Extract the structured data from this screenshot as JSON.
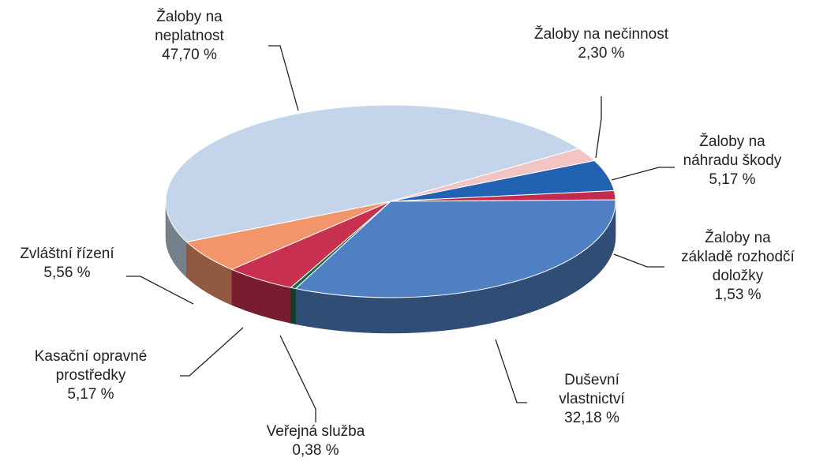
{
  "chart_data": {
    "type": "pie",
    "categories": [
      "Žaloby na neplatnost",
      "Žaloby na nečinnost",
      "Žaloby na náhradu škody",
      "Žaloby na základě rozhodčí doložky",
      "Duševní vlastnictví",
      "Veřejná služba",
      "Kasační opravné prostředky",
      "Zvláštní řízení"
    ],
    "values": [
      47.7,
      2.3,
      5.17,
      1.53,
      32.18,
      0.38,
      5.17,
      5.56
    ],
    "value_labels": [
      "47,70 %",
      "2,30 %",
      "5,17 %",
      "1,53 %",
      "32,18 %",
      "0,38 %",
      "5,17 %",
      "5,56 %"
    ],
    "colors": [
      "#c4d5eb",
      "#f2c4c4",
      "#2162b3",
      "#c42a4e",
      "#5080c4",
      "#1b6b47",
      "#c7304e",
      "#f2956b"
    ]
  }
}
